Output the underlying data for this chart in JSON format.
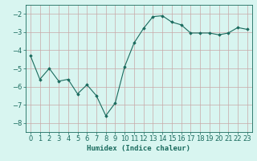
{
  "x": [
    0,
    1,
    2,
    3,
    4,
    5,
    6,
    7,
    8,
    9,
    10,
    11,
    12,
    13,
    14,
    15,
    16,
    17,
    18,
    19,
    20,
    21,
    22,
    23
  ],
  "y": [
    -4.3,
    -5.6,
    -5.0,
    -5.7,
    -5.6,
    -6.4,
    -5.9,
    -6.5,
    -7.6,
    -6.9,
    -4.9,
    -3.6,
    -2.8,
    -2.15,
    -2.1,
    -2.45,
    -2.6,
    -3.05,
    -3.05,
    -3.05,
    -3.15,
    -3.05,
    -2.75,
    -2.85
  ],
  "line_color": "#1a6b5e",
  "marker": "D",
  "marker_size": 1.8,
  "bg_color": "#d8f5f0",
  "grid_color": "#c8a8a8",
  "tick_color": "#1a6b5e",
  "xlabel": "Humidex (Indice chaleur)",
  "ylim": [
    -8.5,
    -1.5
  ],
  "xlim": [
    -0.5,
    23.5
  ],
  "yticks": [
    -8,
    -7,
    -6,
    -5,
    -4,
    -3,
    -2
  ],
  "xticks": [
    0,
    1,
    2,
    3,
    4,
    5,
    6,
    7,
    8,
    9,
    10,
    11,
    12,
    13,
    14,
    15,
    16,
    17,
    18,
    19,
    20,
    21,
    22,
    23
  ],
  "xlabel_fontsize": 6.5,
  "tick_fontsize": 6.0,
  "linewidth": 0.8
}
